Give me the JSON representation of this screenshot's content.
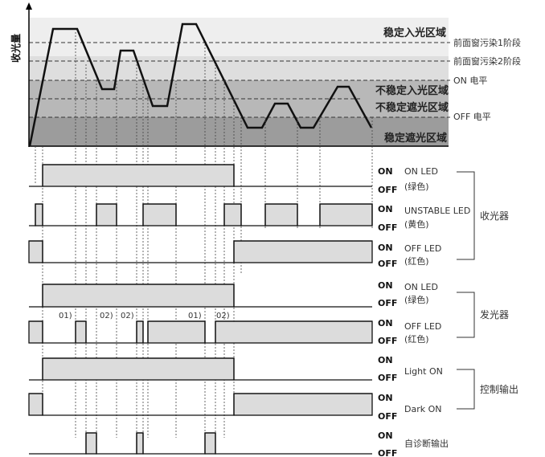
{
  "y_axis_label": "收光量",
  "zones": {
    "stable_light": "稳定入光区域",
    "unstable_light": "不稳定入光区域",
    "unstable_dark": "不稳定遮光区域",
    "stable_dark": "稳定遮光区域"
  },
  "levels": {
    "dirt1": "前面窗污染1阶段",
    "dirt2": "前面窗污染2阶段",
    "on_level": "ON 电平",
    "off_level": "OFF 电平"
  },
  "on_text": "ON",
  "off_text": "OFF",
  "signals": [
    {
      "label": "ON LED",
      "sub": "(绿色)"
    },
    {
      "label": "UNSTABLE LED",
      "sub": "(黄色)"
    },
    {
      "label": "OFF LED",
      "sub": "(红色)"
    },
    {
      "label": "ON LED",
      "sub": "(绿色)"
    },
    {
      "label": "OFF LED",
      "sub": "(红色)"
    },
    {
      "label": "Light ON",
      "sub": ""
    },
    {
      "label": "Dark ON",
      "sub": ""
    },
    {
      "label": "自诊断输出",
      "sub": ""
    }
  ],
  "groups": {
    "receiver": "收光器",
    "emitter": "发光器",
    "control": "控制输出"
  },
  "notes": [
    "01)",
    "02)",
    "02)",
    "01)",
    "02)"
  ],
  "colors": {
    "zone_light": "#eeeeee",
    "zone_mid": "#d4d4d4",
    "zone_unstable": "#b5b5b5",
    "zone_dark": "#9a9a9a",
    "signal_fill": "#dcdcdc"
  }
}
